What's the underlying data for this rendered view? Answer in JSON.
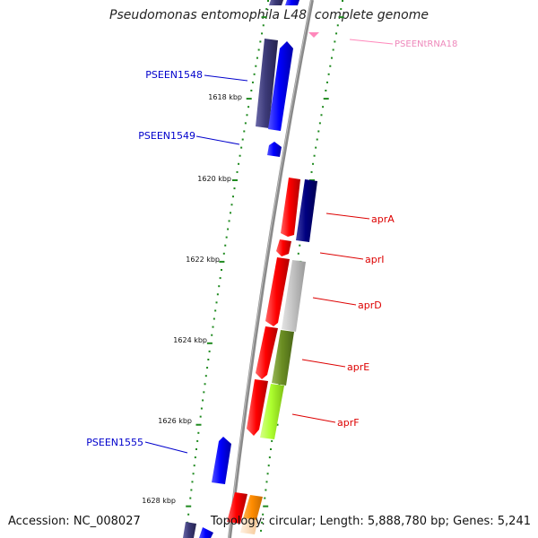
{
  "title": "Pseudomonas entomophila L48, complete genome",
  "footer": {
    "accession": "Accession: NC_008027",
    "topology": "Topology: circular; Length: 5,888,780 bp; Genes: 5,241"
  },
  "colors": {
    "backbone": "#8a8a8a",
    "tick": "#1f8a1f",
    "gene_blue": "#0000ff",
    "gene_navy": "#000080",
    "gene_slate": "#3c3a78",
    "gene_red": "#ff0000",
    "gene_grey": "#c0c0c0",
    "gene_olive": "#6b8e23",
    "gene_lime": "#adff2f",
    "gene_orange": "#ff8c00",
    "gene_peach": "#ffd8b0",
    "trna_pink": "#ff88bb",
    "label_blue": "#0000cc",
    "label_red": "#dd0000",
    "label_pink": "#ee88bb"
  },
  "scale_ticks": [
    {
      "label": "1618 kbp",
      "kbp": 1618
    },
    {
      "label": "1620 kbp",
      "kbp": 1620
    },
    {
      "label": "1622 kbp",
      "kbp": 1622
    },
    {
      "label": "1624 kbp",
      "kbp": 1624
    },
    {
      "label": "1626 kbp",
      "kbp": 1626
    },
    {
      "label": "1628 kbp",
      "kbp": 1628
    }
  ],
  "gene_labels": [
    {
      "name": "PSEENtRNA18",
      "kind": "trna"
    },
    {
      "name": "PSEEN1548",
      "kind": "left"
    },
    {
      "name": "PSEEN1549",
      "kind": "left"
    },
    {
      "name": "aprA",
      "kind": "right"
    },
    {
      "name": "aprI",
      "kind": "right"
    },
    {
      "name": "aprD",
      "kind": "right"
    },
    {
      "name": "aprE",
      "kind": "right"
    },
    {
      "name": "aprF",
      "kind": "right"
    },
    {
      "name": "PSEEN1555",
      "kind": "left"
    }
  ]
}
